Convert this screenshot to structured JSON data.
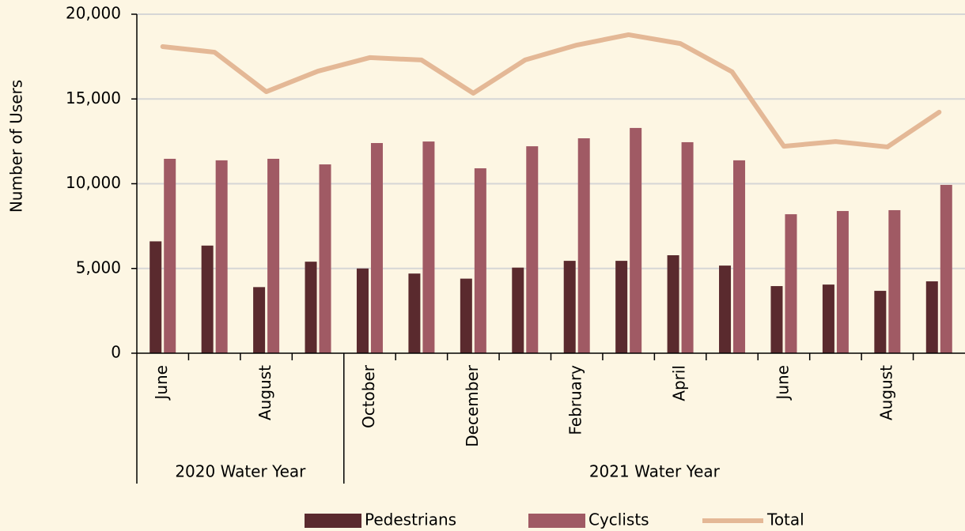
{
  "chart_data": {
    "type": "bar",
    "ylabel": "Number of Users",
    "categories": [
      "June",
      null,
      "August",
      null,
      "October",
      null,
      "December",
      null,
      "February",
      null,
      "April",
      null,
      "June",
      null,
      "August",
      null
    ],
    "groups": [
      {
        "name": "2020 Water Year",
        "span": 4
      },
      {
        "name": "2021 Water Year",
        "span": 12
      }
    ],
    "series": [
      {
        "name": "Pedestrians",
        "type": "bar",
        "color": "#5a2a2e",
        "values": [
          6600,
          6350,
          3900,
          5400,
          5000,
          4700,
          4400,
          5050,
          5450,
          5450,
          5780,
          5170,
          3960,
          4050,
          3680,
          4240
        ]
      },
      {
        "name": "Cyclists",
        "type": "bar",
        "color": "#a05a64",
        "values": [
          11470,
          11380,
          11470,
          11140,
          12400,
          12490,
          10910,
          12210,
          12680,
          13290,
          12450,
          11380,
          8200,
          8390,
          8440,
          9930
        ]
      },
      {
        "name": "Total",
        "type": "line",
        "color": "#e4b896",
        "values": [
          18090,
          17760,
          15430,
          16640,
          17440,
          17300,
          15340,
          17300,
          18180,
          18790,
          18270,
          16600,
          12210,
          12490,
          12170,
          14220
        ]
      }
    ],
    "ylim": [
      0,
      20000
    ],
    "yticks": [
      0,
      {
        "value": 5000,
        "label": "5,000"
      },
      {
        "value": 10000,
        "label": "10,000"
      },
      {
        "value": 15000,
        "label": "15,000"
      },
      {
        "value": 20000,
        "label": "20,000"
      }
    ],
    "grid": true,
    "legend": "bottom"
  }
}
